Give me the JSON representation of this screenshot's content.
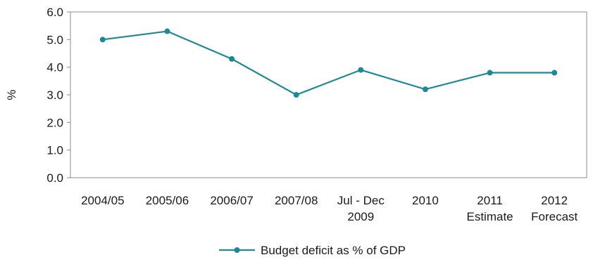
{
  "chart_data": {
    "type": "line",
    "categories": [
      [
        "2004/05"
      ],
      [
        "2005/06"
      ],
      [
        "2006/07"
      ],
      [
        "2007/08"
      ],
      [
        "Jul - Dec",
        "2009"
      ],
      [
        "2010"
      ],
      [
        "2011",
        "Estimate"
      ],
      [
        "2012",
        "Forecast"
      ]
    ],
    "series": [
      {
        "name": "Budget deficit as % of GDP",
        "values": [
          5.0,
          5.3,
          4.3,
          3.0,
          3.9,
          3.2,
          3.8,
          3.8
        ],
        "color": "#1b8a96"
      }
    ],
    "ylabel": "%",
    "ylim": [
      0,
      6
    ],
    "yticks": [
      "0.0",
      "1.0",
      "2.0",
      "3.0",
      "4.0",
      "5.0",
      "6.0"
    ],
    "grid": false,
    "legend": "bottom-center"
  }
}
